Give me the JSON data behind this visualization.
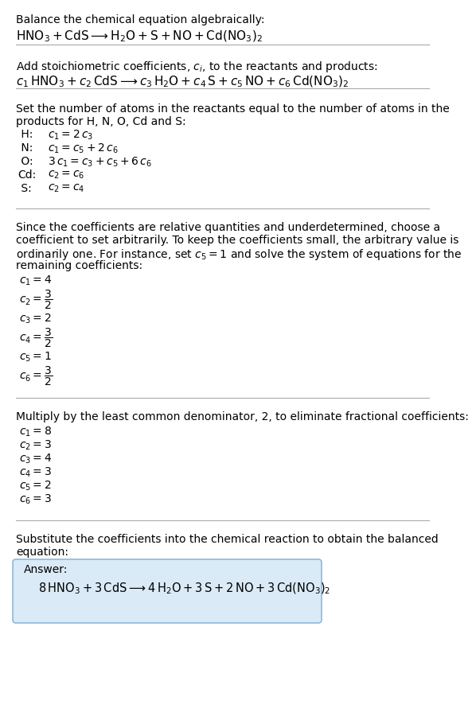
{
  "title_section": "Balance the chemical equation algebraically:",
  "equation_line": "$\\mathrm{HNO_3 + CdS} \\longrightarrow \\mathrm{H_2O + S + NO + Cd(NO_3)_2}$",
  "section2_title": "Add stoichiometric coefficients, $c_i$, to the reactants and products:",
  "equation2_line": "$c_1\\,\\mathrm{HNO_3} + c_2\\,\\mathrm{CdS} \\longrightarrow c_3\\,\\mathrm{H_2O} + c_4\\,\\mathrm{S} + c_5\\,\\mathrm{NO} + c_6\\,\\mathrm{Cd(NO_3)_2}$",
  "section3_title_l1": "Set the number of atoms in the reactants equal to the number of atoms in the",
  "section3_title_l2": "products for H, N, O, Cd and S:",
  "atom_equations": [
    [
      " H:",
      "$c_1 = 2\\,c_3$"
    ],
    [
      " N:",
      "$c_1 = c_5 + 2\\,c_6$"
    ],
    [
      " O:",
      "$3\\,c_1 = c_3 + c_5 + 6\\,c_6$"
    ],
    [
      "Cd:",
      "$c_2 = c_6$"
    ],
    [
      " S:",
      "$c_2 = c_4$"
    ]
  ],
  "section4_l1": "Since the coefficients are relative quantities and underdetermined, choose a",
  "section4_l2": "coefficient to set arbitrarily. To keep the coefficients small, the arbitrary value is",
  "section4_l3": "ordinarily one. For instance, set $c_5 = 1$ and solve the system of equations for the",
  "section4_l4": "remaining coefficients:",
  "coeff1_lines": [
    "$c_1 = 4$",
    "$c_2 = \\dfrac{3}{2}$",
    "$c_3 = 2$",
    "$c_4 = \\dfrac{3}{2}$",
    "$c_5 = 1$",
    "$c_6 = \\dfrac{3}{2}$"
  ],
  "section5_text": "Multiply by the least common denominator, 2, to eliminate fractional coefficients:",
  "coeff2_lines": [
    "$c_1 = 8$",
    "$c_2 = 3$",
    "$c_3 = 4$",
    "$c_4 = 3$",
    "$c_5 = 2$",
    "$c_6 = 3$"
  ],
  "section6_l1": "Substitute the coefficients into the chemical reaction to obtain the balanced",
  "section6_l2": "equation:",
  "answer_label": "Answer:",
  "answer_equation": "$8\\,\\mathrm{HNO_3} + 3\\,\\mathrm{CdS} \\longrightarrow 4\\,\\mathrm{H_2O} + 3\\,\\mathrm{S} + 2\\,\\mathrm{NO} + 3\\,\\mathrm{Cd(NO_3)_2}$",
  "bg_color": "#ffffff",
  "text_color": "#000000",
  "answer_box_facecolor": "#daeaf6",
  "answer_box_edgecolor": "#90b8d8",
  "divider_color": "#aaaaaa",
  "font_size": 10.0,
  "eq_font_size": 11.0
}
